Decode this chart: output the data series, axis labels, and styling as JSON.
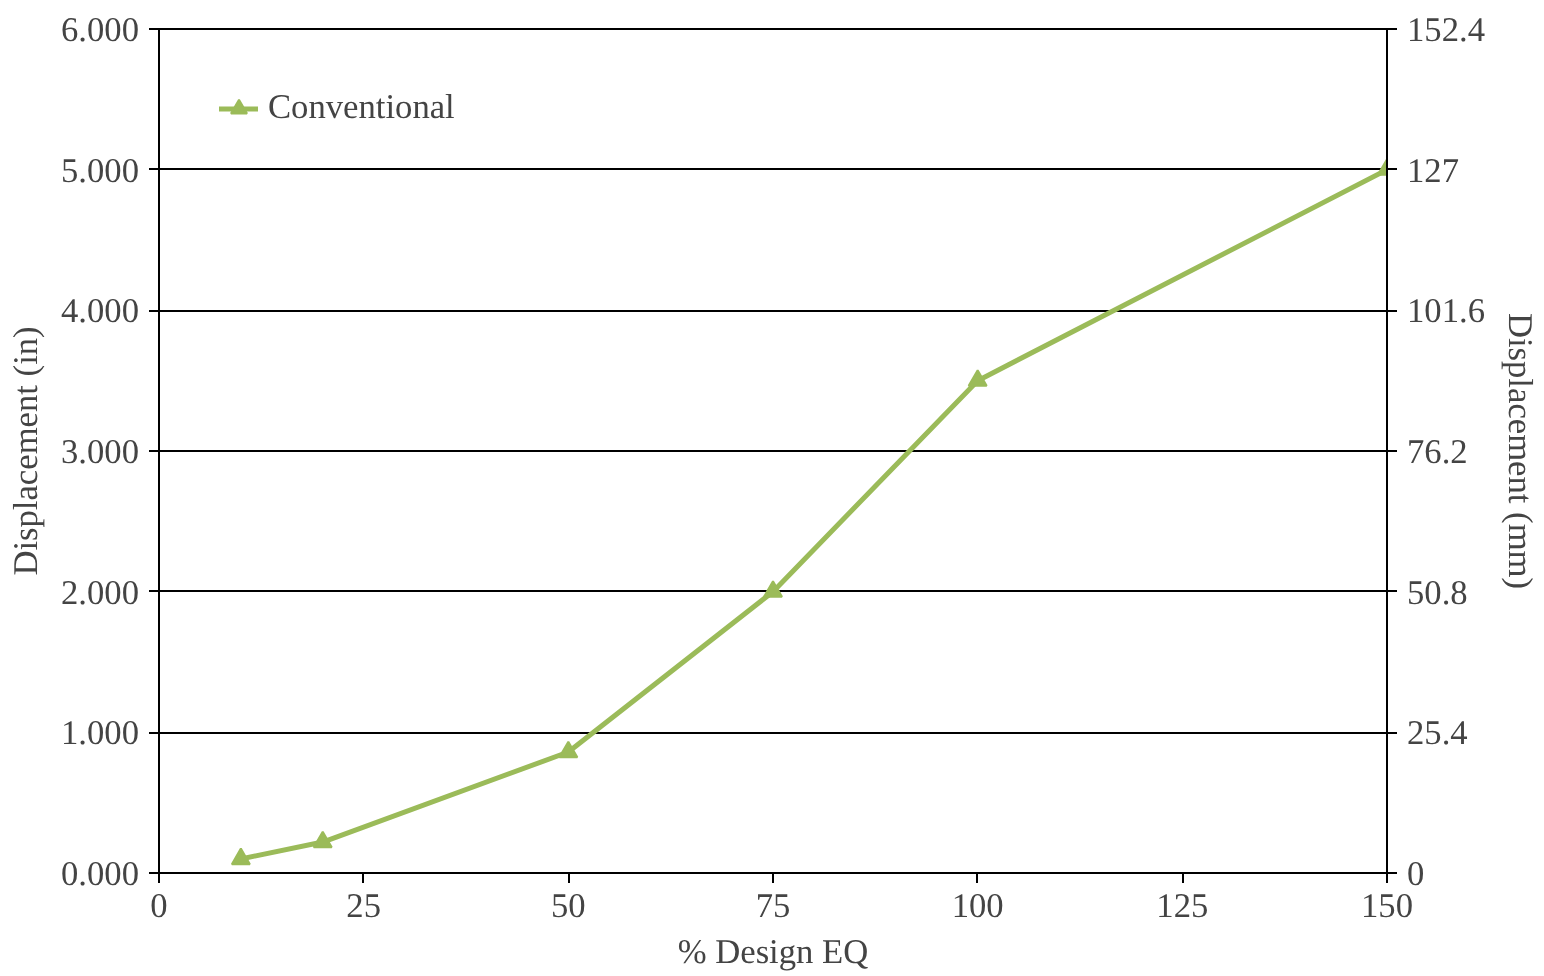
{
  "chart_data": {
    "type": "line",
    "xlabel": "% Design EQ",
    "ylabel": "Displacement (in)",
    "y2label": "Displacement (mm)",
    "x": [
      10,
      20,
      50,
      75,
      100,
      150
    ],
    "series": [
      {
        "name": "Conventional",
        "color": "#9bbb59",
        "values": [
          0.1,
          0.22,
          0.86,
          2.0,
          3.5,
          5.0
        ]
      }
    ],
    "xlim": [
      0,
      150
    ],
    "xticks": [
      0,
      25,
      50,
      75,
      100,
      125,
      150
    ],
    "ylim": [
      0,
      6
    ],
    "yticks": [
      {
        "value": 0,
        "label": "0.000"
      },
      {
        "value": 1,
        "label": "1.000"
      },
      {
        "value": 2,
        "label": "2.000"
      },
      {
        "value": 3,
        "label": "3.000"
      },
      {
        "value": 4,
        "label": "4.000"
      },
      {
        "value": 5,
        "label": "5.000"
      },
      {
        "value": 6,
        "label": "6.000"
      }
    ],
    "y2lim": [
      0,
      152.4
    ],
    "y2ticks": [
      0,
      25.4,
      50.8,
      76.2,
      101.6,
      127,
      152.4
    ],
    "grid": "y",
    "legend": "top left",
    "marker": "triangle",
    "line_style": "solid"
  }
}
